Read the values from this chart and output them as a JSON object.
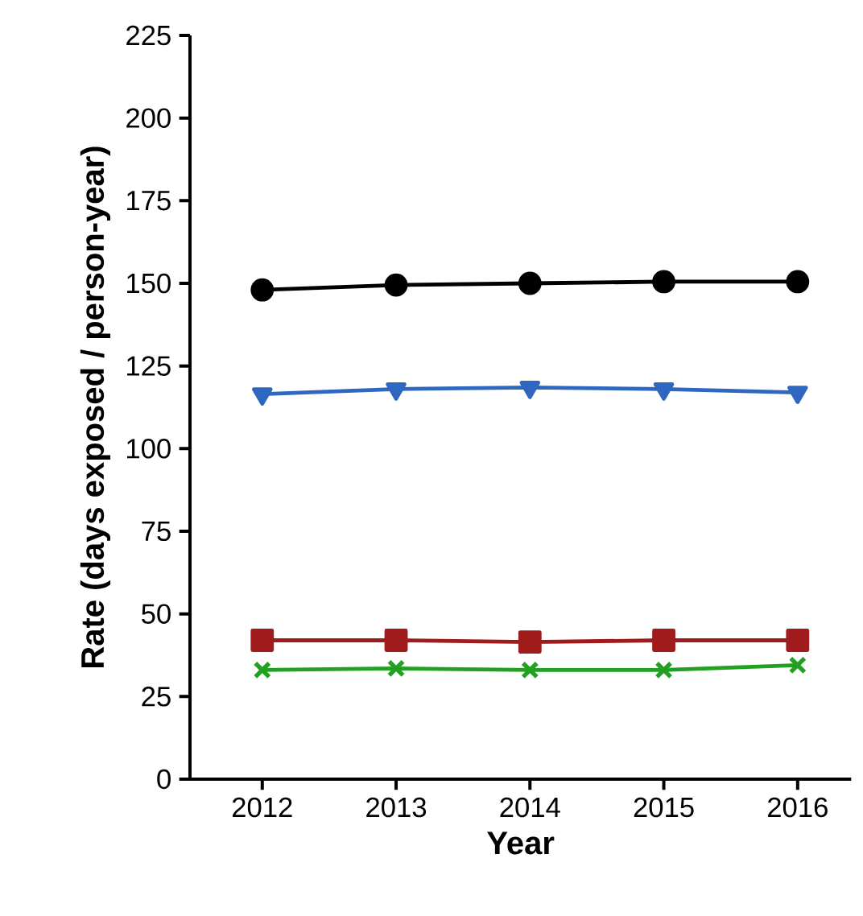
{
  "chart_data": {
    "type": "line",
    "xlabel": "Year",
    "ylabel": "Rate (days exposed / person-year)",
    "categories": [
      "2012",
      "2013",
      "2014",
      "2015",
      "2016"
    ],
    "series": [
      {
        "color": "#000000",
        "marker": "circle",
        "values": [
          148,
          149.5,
          150,
          150.5,
          150.5
        ]
      },
      {
        "color": "#2f67c0",
        "marker": "triangle",
        "values": [
          116.5,
          118,
          118.5,
          118,
          117
        ]
      },
      {
        "color": "#a01c1c",
        "marker": "square",
        "values": [
          42,
          42,
          41.5,
          42,
          42
        ]
      },
      {
        "color": "#22a022",
        "marker": "cross",
        "values": [
          33,
          33.5,
          33,
          33,
          34.5
        ]
      }
    ],
    "ylim": [
      0,
      225
    ],
    "yticks": [
      0,
      25,
      50,
      75,
      100,
      125,
      150,
      175,
      200,
      225
    ],
    "line_style": "solid"
  }
}
